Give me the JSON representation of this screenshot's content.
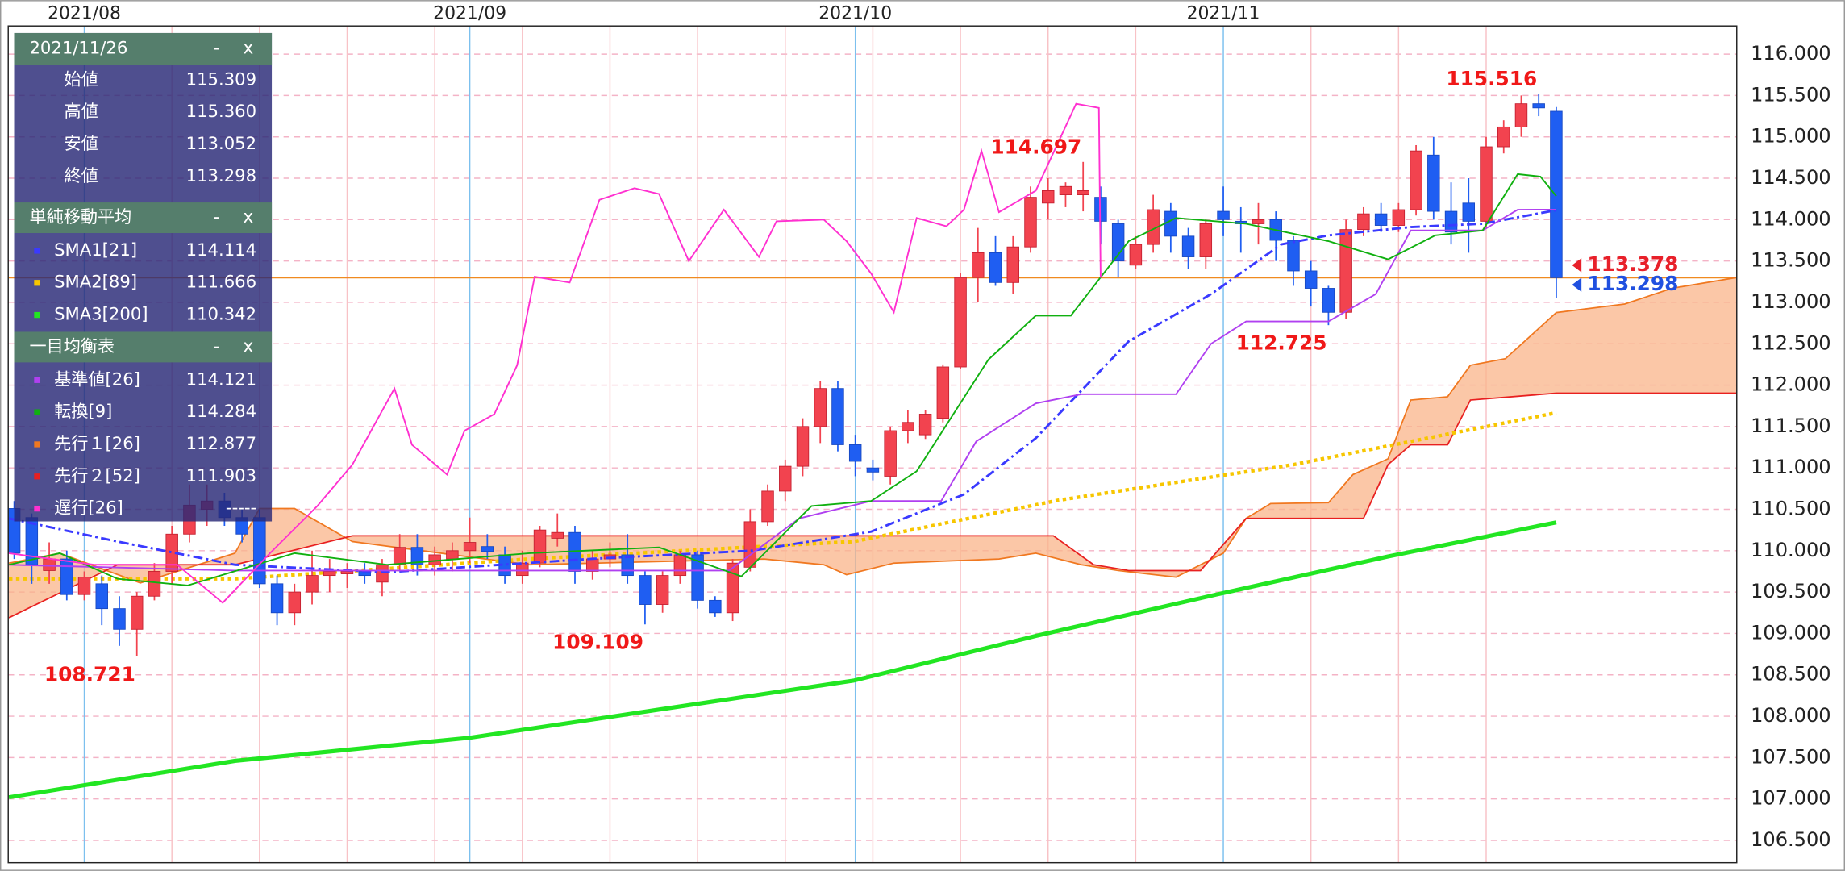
{
  "chart_data": {
    "type": "candlestick",
    "xlim": [
      -0.34,
      98.3
    ],
    "ylim": [
      106.23,
      116.34
    ],
    "yticks": [
      {
        "value": 106.5,
        "label": "106.500"
      },
      {
        "value": 107,
        "label": "107.000"
      },
      {
        "value": 107.5,
        "label": "107.500"
      },
      {
        "value": 108,
        "label": "108.000"
      },
      {
        "value": 108.5,
        "label": "108.500"
      },
      {
        "value": 109,
        "label": "109.000"
      },
      {
        "value": 109.5,
        "label": "109.500"
      },
      {
        "value": 110,
        "label": "110.000"
      },
      {
        "value": 110.5,
        "label": "110.500"
      },
      {
        "value": 111,
        "label": "111.000"
      },
      {
        "value": 111.5,
        "label": "111.500"
      },
      {
        "value": 112,
        "label": "112.000"
      },
      {
        "value": 112.5,
        "label": "112.500"
      },
      {
        "value": 113,
        "label": "113.000"
      },
      {
        "value": 113.5,
        "label": "113.500"
      },
      {
        "value": 114,
        "label": "114.000"
      },
      {
        "value": 114.5,
        "label": "114.500"
      },
      {
        "value": 115,
        "label": "115.000"
      },
      {
        "value": 115.5,
        "label": "115.500"
      },
      {
        "value": 116,
        "label": "116.000"
      }
    ],
    "xticks": [
      {
        "value": 4,
        "label": "2021/08"
      },
      {
        "value": 26,
        "label": "2021/09"
      },
      {
        "value": 48,
        "label": "2021/10"
      },
      {
        "value": 69,
        "label": "2021/11"
      }
    ],
    "xminorticks": [
      9,
      14,
      19,
      24,
      29,
      34,
      39,
      44,
      49,
      54,
      59,
      64,
      74,
      79,
      84
    ],
    "grid": true,
    "up_color": "#f2434f",
    "down_color": "#1f5ef2",
    "cloud_color": "#f9b48a",
    "open": [
      110.51,
      110.4,
      109.76,
      109.9,
      109.47,
      109.6,
      109.3,
      109.05,
      109.45,
      109.75,
      110.2,
      110.5,
      110.6,
      110.4,
      110.4,
      109.6,
      109.25,
      109.5,
      109.7,
      109.72,
      109.75,
      109.62,
      109.83,
      110.04,
      109.83,
      109.9,
      110.0,
      110.05,
      109.95,
      109.7,
      109.85,
      110.15,
      110.22,
      109.75,
      109.9,
      109.95,
      109.7,
      109.35,
      109.7,
      109.95,
      109.4,
      109.25,
      109.8,
      110.35,
      110.72,
      111.02,
      111.5,
      111.96,
      111.28,
      111.0,
      110.9,
      111.45,
      111.4,
      111.6,
      112.22,
      113.3,
      113.6,
      113.24,
      113.67,
      114.2,
      114.3,
      114.3,
      114.27,
      113.95,
      113.45,
      113.7,
      114.1,
      113.8,
      113.55,
      114.1,
      113.98,
      113.95,
      114.0,
      113.75,
      113.38,
      113.17,
      112.88,
      113.88,
      114.07,
      113.93,
      114.12,
      114.78,
      114.1,
      114.2,
      113.98,
      114.88,
      115.12,
      115.4,
      115.309
    ],
    "high": [
      110.6,
      110.45,
      110.1,
      110.0,
      109.75,
      109.7,
      109.45,
      109.5,
      109.85,
      110.3,
      110.8,
      110.8,
      110.7,
      110.5,
      110.5,
      109.7,
      109.6,
      110.0,
      109.9,
      109.85,
      109.85,
      109.9,
      110.2,
      110.2,
      110.05,
      110.1,
      110.4,
      110.2,
      110.05,
      110.0,
      110.3,
      110.45,
      110.3,
      110.0,
      110.1,
      110.2,
      109.75,
      109.75,
      110.0,
      110.0,
      109.45,
      109.9,
      110.5,
      110.8,
      111.1,
      111.6,
      112.05,
      112.05,
      111.4,
      111.1,
      111.5,
      111.7,
      111.7,
      112.25,
      113.35,
      113.9,
      113.8,
      113.8,
      114.4,
      114.5,
      114.45,
      114.697,
      114.4,
      114.0,
      113.8,
      114.3,
      114.2,
      113.9,
      114.0,
      114.4,
      114.15,
      114.2,
      114.1,
      113.8,
      113.5,
      113.2,
      114.0,
      114.15,
      114.2,
      114.2,
      114.9,
      115.0,
      114.45,
      114.5,
      115.0,
      115.2,
      115.5,
      115.516,
      115.36
    ],
    "low": [
      109.9,
      109.6,
      109.6,
      109.4,
      109.4,
      109.1,
      108.85,
      108.721,
      109.4,
      109.6,
      110.1,
      110.3,
      110.3,
      110.1,
      109.55,
      109.1,
      109.1,
      109.35,
      109.5,
      109.55,
      109.6,
      109.45,
      109.75,
      109.7,
      109.7,
      109.75,
      109.85,
      109.9,
      109.6,
      109.6,
      109.8,
      110.05,
      109.6,
      109.65,
      109.8,
      109.6,
      109.109,
      109.25,
      109.6,
      109.3,
      109.2,
      109.15,
      109.75,
      110.3,
      110.6,
      110.9,
      111.3,
      111.2,
      110.9,
      110.85,
      110.8,
      111.3,
      111.35,
      111.55,
      112.2,
      113.0,
      113.2,
      113.1,
      113.6,
      114.0,
      114.15,
      114.1,
      113.7,
      113.3,
      113.4,
      113.6,
      113.6,
      113.4,
      113.4,
      113.8,
      113.6,
      113.7,
      113.5,
      113.2,
      112.95,
      112.725,
      112.8,
      113.8,
      113.85,
      113.85,
      114.05,
      114.0,
      113.7,
      113.6,
      113.9,
      114.8,
      115.0,
      115.25,
      113.052
    ],
    "close": [
      109.97,
      109.83,
      109.9,
      109.47,
      109.68,
      109.3,
      109.05,
      109.45,
      109.75,
      110.2,
      110.55,
      110.6,
      110.4,
      110.2,
      109.6,
      109.25,
      109.5,
      109.7,
      109.75,
      109.75,
      109.7,
      109.83,
      110.04,
      109.83,
      109.95,
      110.0,
      110.1,
      109.99,
      109.7,
      109.85,
      110.25,
      110.22,
      109.75,
      109.9,
      109.95,
      109.7,
      109.35,
      109.7,
      109.95,
      109.4,
      109.25,
      109.85,
      110.35,
      110.72,
      111.02,
      111.5,
      111.96,
      111.28,
      111.08,
      110.95,
      111.45,
      111.55,
      111.65,
      112.22,
      113.3,
      113.6,
      113.24,
      113.67,
      114.27,
      114.35,
      114.4,
      114.35,
      113.98,
      113.5,
      113.7,
      114.12,
      113.8,
      113.55,
      113.95,
      114.0,
      113.95,
      114.0,
      113.75,
      113.38,
      113.17,
      112.88,
      113.88,
      114.07,
      113.93,
      114.12,
      114.83,
      114.1,
      113.85,
      113.98,
      114.88,
      115.12,
      115.4,
      115.35,
      113.298
    ],
    "lines": [
      {
        "name": "SMA1[21]",
        "color": "#3a3aff",
        "style": "dashdot",
        "width": 2,
        "x": [
          -0.3,
          5.9,
          12.6,
          21.3,
          32.8,
          42.1,
          48.9,
          54.2,
          58.3,
          63.6,
          68.3,
          72.3,
          75.0,
          79.7,
          83.8,
          88
        ],
        "values": [
          110.39,
          110.11,
          109.83,
          109.74,
          109.9,
          110.0,
          110.23,
          110.68,
          111.36,
          112.53,
          113.1,
          113.7,
          113.81,
          113.91,
          113.95,
          114.114
        ]
      },
      {
        "name": "SMA2[89]",
        "color": "#f7c600",
        "style": "dotted",
        "width": 3,
        "x": [
          -0.3,
          12.6,
          29.4,
          40.8,
          47.9,
          59.6,
          73.0,
          79.7,
          88
        ],
        "values": [
          109.66,
          109.66,
          109.9,
          110.03,
          110.11,
          110.61,
          111.04,
          111.32,
          111.666
        ]
      },
      {
        "name": "SMA3[200]",
        "color": "#22e622",
        "style": "solid",
        "width": 3.5,
        "x": [
          -0.3,
          12.6,
          26.0,
          36.8,
          47.9,
          58.3,
          68.6,
          78.4,
          88
        ],
        "values": [
          107.02,
          107.46,
          107.74,
          108.08,
          108.43,
          108.97,
          109.47,
          109.93,
          110.342
        ]
      },
      {
        "name": "基準値[26]",
        "color": "#b040f0",
        "style": "solid",
        "width": 1.3,
        "x": [
          -0.3,
          12.6,
          29.4,
          40.8,
          44.8,
          48.9,
          52.9,
          54.9,
          58.3,
          60.9,
          66.3,
          68.3,
          70.3,
          75.0,
          77.7,
          79.7,
          83.8,
          85.8,
          88
        ],
        "values": [
          109.83,
          109.76,
          109.76,
          109.76,
          110.39,
          110.6,
          110.6,
          111.32,
          111.78,
          111.89,
          111.89,
          112.5,
          112.77,
          112.77,
          113.1,
          113.87,
          113.87,
          114.12,
          114.121
        ]
      },
      {
        "name": "転換[9]",
        "color": "#10b010",
        "style": "solid",
        "width": 1.3,
        "x": [
          -0.3,
          2.6,
          5.9,
          9.9,
          16.0,
          21.3,
          29.4,
          36.8,
          41.5,
          45.5,
          48.9,
          51.5,
          55.6,
          58.3,
          60.3,
          63.6,
          66.3,
          70.3,
          75.0,
          78.4,
          81.1,
          83.8,
          85.8,
          87.1,
          88
        ],
        "values": [
          109.83,
          109.97,
          109.66,
          109.58,
          109.97,
          109.83,
          109.97,
          110.04,
          109.69,
          110.54,
          110.6,
          110.96,
          112.31,
          112.84,
          112.84,
          113.74,
          114.02,
          113.95,
          113.74,
          113.52,
          113.81,
          113.87,
          114.55,
          114.52,
          114.284
        ]
      },
      {
        "name": "先行１[26]",
        "color": "#f07820",
        "style": "solid",
        "width": 1.2,
        "cloud": "upper",
        "x": [
          -0.3,
          2.6,
          7.2,
          12.6,
          14.0,
          16.0,
          19.3,
          29.4,
          42.8,
          46.2,
          47.5,
          50.2,
          56.2,
          58.3,
          60.9,
          63.0,
          66.3,
          69.0,
          70.3,
          71.7,
          75.0,
          76.4,
          78.4,
          79.7,
          81.8,
          83.1,
          85.1,
          88,
          91.9,
          94.6,
          98.3
        ],
        "values": [
          109.85,
          109.97,
          109.61,
          109.97,
          110.51,
          110.51,
          110.11,
          109.83,
          109.9,
          109.83,
          109.71,
          109.85,
          109.9,
          109.97,
          109.83,
          109.76,
          109.68,
          109.97,
          110.39,
          110.57,
          110.58,
          110.92,
          111.11,
          111.82,
          111.86,
          112.24,
          112.32,
          112.877,
          112.98,
          113.17,
          113.3
        ]
      },
      {
        "name": "先行２[52]",
        "color": "#e82020",
        "style": "solid",
        "width": 1.2,
        "cloud": "lower",
        "x": [
          -0.3,
          5.9,
          12.6,
          19.3,
          59.3,
          61.6,
          63.6,
          67.7,
          70.3,
          71.7,
          77.0,
          78.4,
          79.7,
          81.8,
          83.1,
          88,
          98.3
        ],
        "values": [
          109.19,
          109.83,
          109.83,
          110.18,
          110.18,
          109.83,
          109.76,
          109.76,
          110.39,
          110.39,
          110.39,
          111.04,
          111.28,
          111.28,
          111.82,
          111.903,
          111.903
        ]
      },
      {
        "name": "遅行[26]",
        "color": "#ff30d0",
        "style": "solid",
        "width": 1.3,
        "x": [
          -0.3,
          4.6,
          9.3,
          11.9,
          14.6,
          17.3,
          19.3,
          21.7,
          22.7,
          24.7,
          25.7,
          27.4,
          28.7,
          29.7,
          31.7,
          33.4,
          35.4,
          36.8,
          38.5,
          40.5,
          42.5,
          43.5,
          46.2,
          47.5,
          48.9,
          50.2,
          51.5,
          53.2,
          54.2,
          55.2,
          56.2,
          58.3,
          60.6,
          61.9,
          62
        ],
        "values": [
          109.97,
          109.83,
          109.83,
          109.37,
          109.97,
          110.54,
          111.04,
          111.96,
          111.28,
          110.92,
          111.45,
          111.65,
          112.24,
          113.31,
          113.24,
          114.24,
          114.38,
          114.31,
          113.5,
          114.12,
          113.55,
          113.98,
          114.0,
          113.74,
          113.35,
          112.88,
          114.02,
          113.92,
          114.12,
          114.83,
          114.09,
          114.35,
          115.4,
          115.35,
          113.298
        ]
      }
    ],
    "last_price_line": {
      "value": 113.298,
      "color": "#f08a20"
    },
    "price_labels": [
      {
        "value": 113.378,
        "color": "#e8202a"
      },
      {
        "value": 113.298,
        "color": "#2050e0"
      }
    ],
    "annotations": [
      {
        "value": 115.516,
        "index": 87,
        "position": "above"
      },
      {
        "value": 114.697,
        "index": 61,
        "position": "above"
      },
      {
        "value": 112.725,
        "index": 75,
        "position": "below"
      },
      {
        "value": 109.109,
        "index": 36,
        "position": "below"
      },
      {
        "value": 108.721,
        "index": 7,
        "position": "below"
      }
    ],
    "annotation_color": "#f01818"
  },
  "info_panel": {
    "date": "2021/11/26",
    "buttons": [
      "-",
      "x"
    ],
    "ohlc": [
      {
        "label": "始値",
        "value": "115.309"
      },
      {
        "label": "高値",
        "value": "115.360"
      },
      {
        "label": "安値",
        "value": "113.052"
      },
      {
        "label": "終値",
        "value": "113.298"
      }
    ],
    "sections": [
      {
        "title": "単純移動平均",
        "values": [
          "114.114",
          "111.666",
          "110.342"
        ]
      },
      {
        "title": "一目均衡表",
        "values": [
          "114.121",
          "114.284",
          "112.877",
          "111.903",
          "-----"
        ]
      }
    ]
  }
}
